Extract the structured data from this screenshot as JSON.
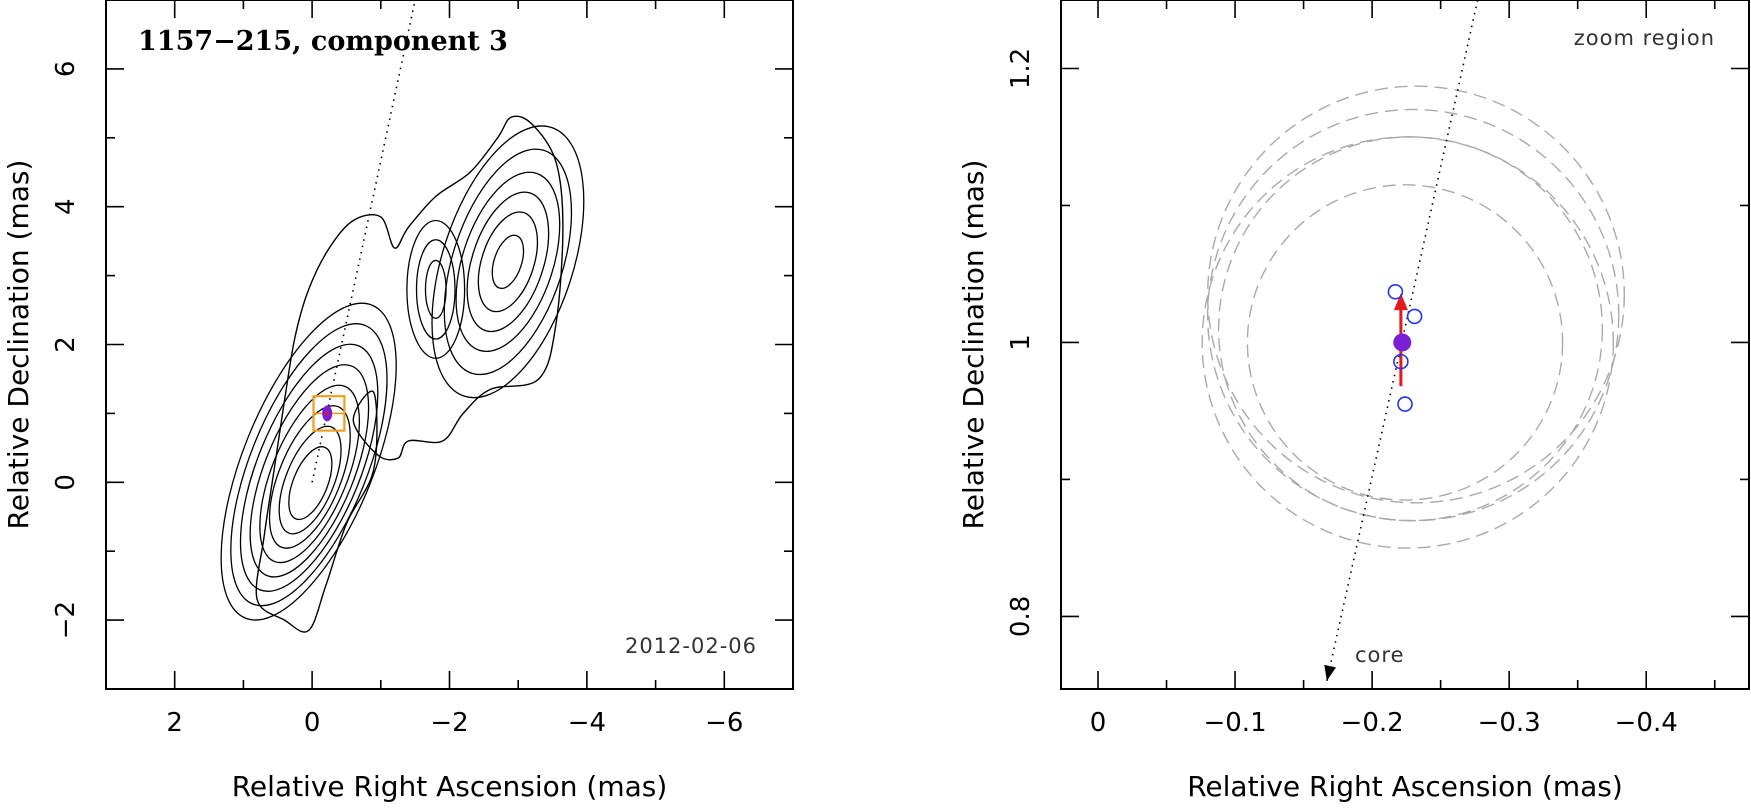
{
  "chart_data": [
    {
      "type": "contour",
      "title": "1157−215, component 3",
      "date_label": "2012-02-06",
      "xlabel": "Relative Right Ascension (mas)",
      "ylabel": "Relative Declination (mas)",
      "xlim": [
        3,
        -7
      ],
      "ylim": [
        -3,
        7
      ],
      "xticks": [
        2,
        0,
        -2,
        -4,
        -6
      ],
      "xtick_labels": [
        "2",
        "0",
        "−2",
        "−4",
        "−6"
      ],
      "yticks": [
        -2,
        0,
        2,
        4,
        6
      ],
      "ytick_labels": [
        "−2",
        "0",
        "2",
        "4",
        "6"
      ],
      "component_position": {
        "x": -0.22,
        "y": 1.0
      },
      "zoom_box": {
        "x_range": [
          -0.02,
          -0.47
        ],
        "y_range": [
          0.75,
          1.25
        ]
      },
      "jet_axis": {
        "from": {
          "x": 0,
          "y": 0
        },
        "to": {
          "x": -1.5,
          "y": 7.0
        }
      },
      "contour_levels": 9,
      "colors": {
        "contour": "#000000",
        "component": "#7b1fd6",
        "box": "#f0a020",
        "marker_center": "#e31a1c"
      }
    },
    {
      "type": "scatter",
      "title": "zoom region",
      "xlabel": "Relative Right Ascension (mas)",
      "ylabel": "Relative Declination (mas)",
      "xlim": [
        0.027,
        -0.475
      ],
      "ylim": [
        0.747,
        1.25
      ],
      "xticks": [
        0,
        -0.1,
        -0.2,
        -0.3,
        -0.4
      ],
      "xtick_labels": [
        "0",
        "−0.1",
        "−0.2",
        "−0.3",
        "−0.4"
      ],
      "yticks": [
        0.8,
        1.0,
        1.2
      ],
      "ytick_labels": [
        "0.8",
        "1",
        "1.2"
      ],
      "core_label": "core",
      "mean_position": {
        "x": -0.222,
        "y": 1.0
      },
      "epoch_positions": [
        {
          "x": -0.217,
          "y": 1.037
        },
        {
          "x": -0.231,
          "y": 1.019
        },
        {
          "x": -0.221,
          "y": 0.986
        },
        {
          "x": -0.224,
          "y": 0.955
        }
      ],
      "motion_vector": {
        "from": {
          "x": -0.221,
          "y": 0.968
        },
        "to": {
          "x": -0.221,
          "y": 1.036
        }
      },
      "error_circles": [
        {
          "cx": -0.224,
          "cy": 1.0,
          "r": 0.115
        },
        {
          "cx": -0.226,
          "cy": 1.0,
          "r": 0.15
        },
        {
          "cx": -0.228,
          "cy": 1.01,
          "r": 0.14
        },
        {
          "cx": -0.23,
          "cy": 1.02,
          "r": 0.15
        },
        {
          "cx": -0.232,
          "cy": 1.035,
          "r": 0.152
        }
      ],
      "jet_axis": {
        "from": {
          "x": -0.167,
          "y": 0.753
        },
        "to": {
          "x": -0.277,
          "y": 1.25
        }
      },
      "colors": {
        "mean": "#7b1fd6",
        "epochs": "#2233ee",
        "vector": "#e31a1c",
        "circles": "#aaaaaa"
      }
    }
  ]
}
